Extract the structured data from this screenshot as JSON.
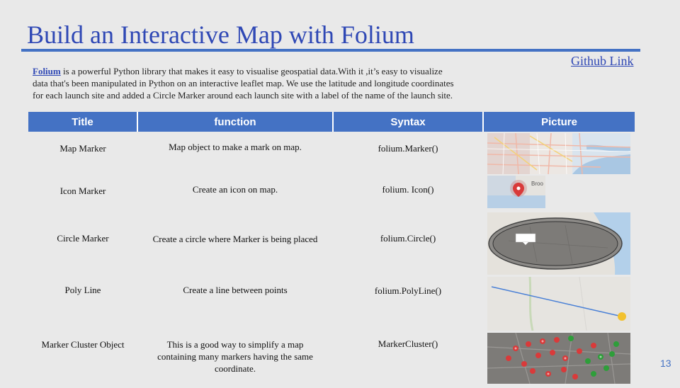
{
  "slide": {
    "title": "Build an Interactive Map with Folium",
    "github_link": "Github Link",
    "page_number": "13",
    "intro_keyword": "Folium",
    "intro_text": " is a powerful Python library that makes it easy to visualise geospatial data.With it ,it’s easy to visualize data that's been manipulated in Python on an interactive leaflet map. We use the latitude and longitude coordinates for each launch site and added a Circle Marker around each launch site with a label of the name of the launch site."
  },
  "table": {
    "headers": [
      "Title",
      "function",
      "Syntax",
      "Picture"
    ],
    "rows": [
      {
        "title": "Map Marker",
        "function": "Map object to make a mark on map.",
        "syntax": "folium.Marker()",
        "picture": "map-marker-picture"
      },
      {
        "title": "Icon Marker",
        "function": "Create an icon on map.",
        "syntax": "folium. Icon()",
        "picture": "icon-marker-picture",
        "map_label": "Broo"
      },
      {
        "title": "Circle Marker",
        "function": "Create a circle where Marker is being placed",
        "syntax": "folium.Circle()",
        "picture": "circle-marker-picture"
      },
      {
        "title": "Poly Line",
        "function": "Create a line between points",
        "syntax": "folium.PolyLine()",
        "picture": "polyline-picture"
      },
      {
        "title": "Marker Cluster Object",
        "function": "This is a good way to simplify a map containing many markers having the same coordinate.",
        "syntax": "MarkerCluster()",
        "picture": "marker-cluster-picture"
      }
    ]
  },
  "colors": {
    "accent": "#4472c4",
    "title": "#2f48b5",
    "background": "#e9e9e9"
  }
}
